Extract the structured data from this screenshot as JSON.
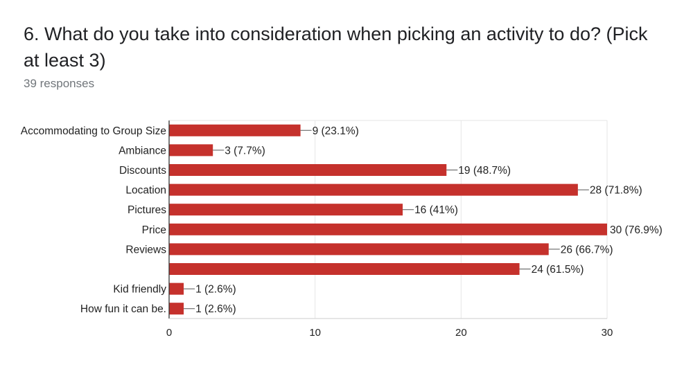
{
  "question": {
    "title": "6. What do you take into consideration when picking an activity to do? (Pick at least 3)",
    "responses": "39 responses"
  },
  "colors": {
    "bar": "#c5312c",
    "grid": "#e6e6e6",
    "axis": "#333333",
    "text": "#222222"
  },
  "chart_data": {
    "type": "bar",
    "orientation": "horizontal",
    "categories": [
      "Accommodating to Group Size",
      "Ambiance",
      "Discounts",
      "Location",
      "Pictures",
      "Price",
      "Reviews",
      "",
      "Kid friendly",
      "How fun it can be."
    ],
    "values": [
      9,
      3,
      19,
      28,
      16,
      30,
      26,
      24,
      1,
      1
    ],
    "data_labels": [
      "9 (23.1%)",
      "3 (7.7%)",
      "19 (48.7%)",
      "28 (71.8%)",
      "16 (41%)",
      "30 (76.9%)",
      "26 (66.7%)",
      "24 (61.5%)",
      "1 (2.6%)",
      "1 (2.6%)"
    ],
    "xlim": [
      0,
      30
    ],
    "xticks": [
      0,
      10,
      20,
      30
    ],
    "grid": true
  }
}
